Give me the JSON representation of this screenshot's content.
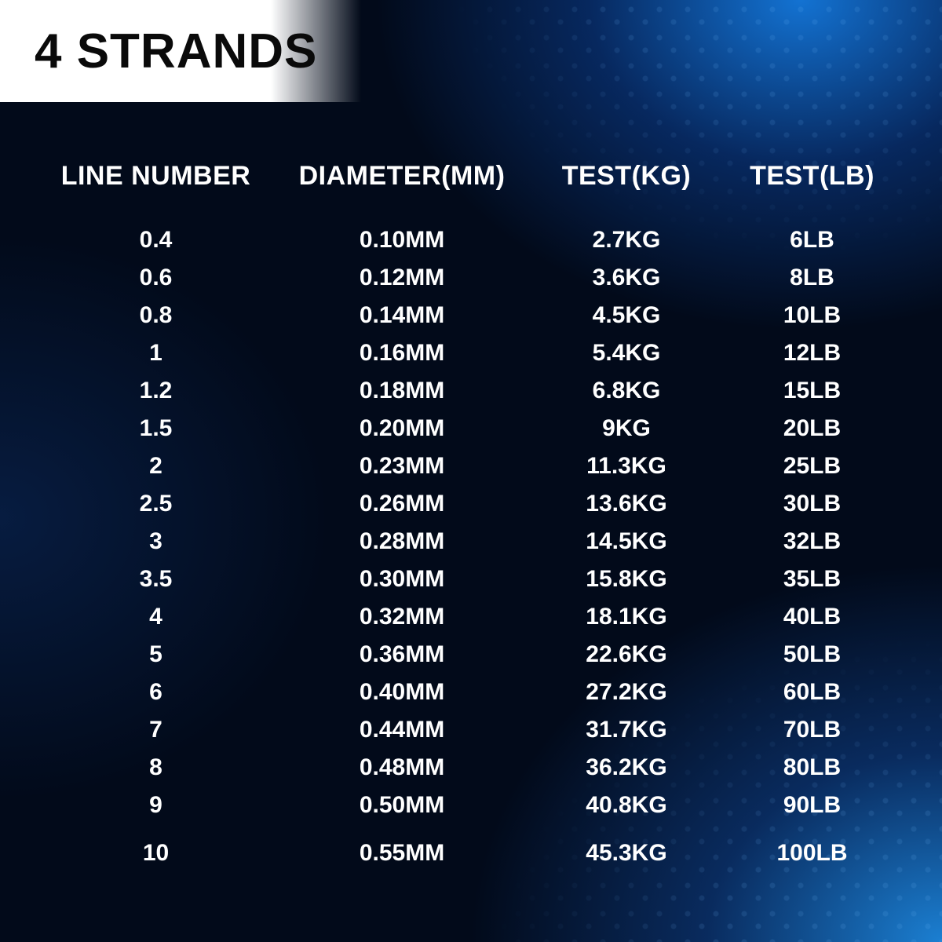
{
  "title": "4 STRANDS",
  "colors": {
    "page_bg": "#020a1a",
    "title_bg": "#ffffff",
    "title_text": "#0a0a0a",
    "text": "#ffffff",
    "accent_blue_light": "#1e8ce6",
    "accent_blue_dark": "#0a3c78"
  },
  "table": {
    "type": "table",
    "columns": [
      "LINE NUMBER",
      "DIAMETER(MM)",
      "TEST(KG)",
      "TEST(LB)"
    ],
    "column_widths_pct": [
      27,
      30,
      22,
      21
    ],
    "header_fontsize": 34,
    "cell_fontsize": 30,
    "font_weight": 900,
    "text_align": "center",
    "rows": [
      [
        "0.4",
        "0.10MM",
        "2.7KG",
        "6LB"
      ],
      [
        "0.6",
        "0.12MM",
        "3.6KG",
        "8LB"
      ],
      [
        "0.8",
        "0.14MM",
        "4.5KG",
        "10LB"
      ],
      [
        "1",
        "0.16MM",
        "5.4KG",
        "12LB"
      ],
      [
        "1.2",
        "0.18MM",
        "6.8KG",
        "15LB"
      ],
      [
        "1.5",
        "0.20MM",
        "9KG",
        "20LB"
      ],
      [
        "2",
        "0.23MM",
        "11.3KG",
        "25LB"
      ],
      [
        "2.5",
        "0.26MM",
        "13.6KG",
        "30LB"
      ],
      [
        "3",
        "0.28MM",
        "14.5KG",
        "32LB"
      ],
      [
        "3.5",
        "0.30MM",
        "15.8KG",
        "35LB"
      ],
      [
        "4",
        "0.32MM",
        "18.1KG",
        "40LB"
      ],
      [
        "5",
        "0.36MM",
        "22.6KG",
        "50LB"
      ],
      [
        "6",
        "0.40MM",
        "27.2KG",
        "60LB"
      ],
      [
        "7",
        "0.44MM",
        "31.7KG",
        "70LB"
      ],
      [
        "8",
        "0.48MM",
        "36.2KG",
        "80LB"
      ],
      [
        "9",
        "0.50MM",
        "40.8KG",
        "90LB"
      ],
      [
        "10",
        "0.55MM",
        "45.3KG",
        "100LB"
      ]
    ]
  }
}
